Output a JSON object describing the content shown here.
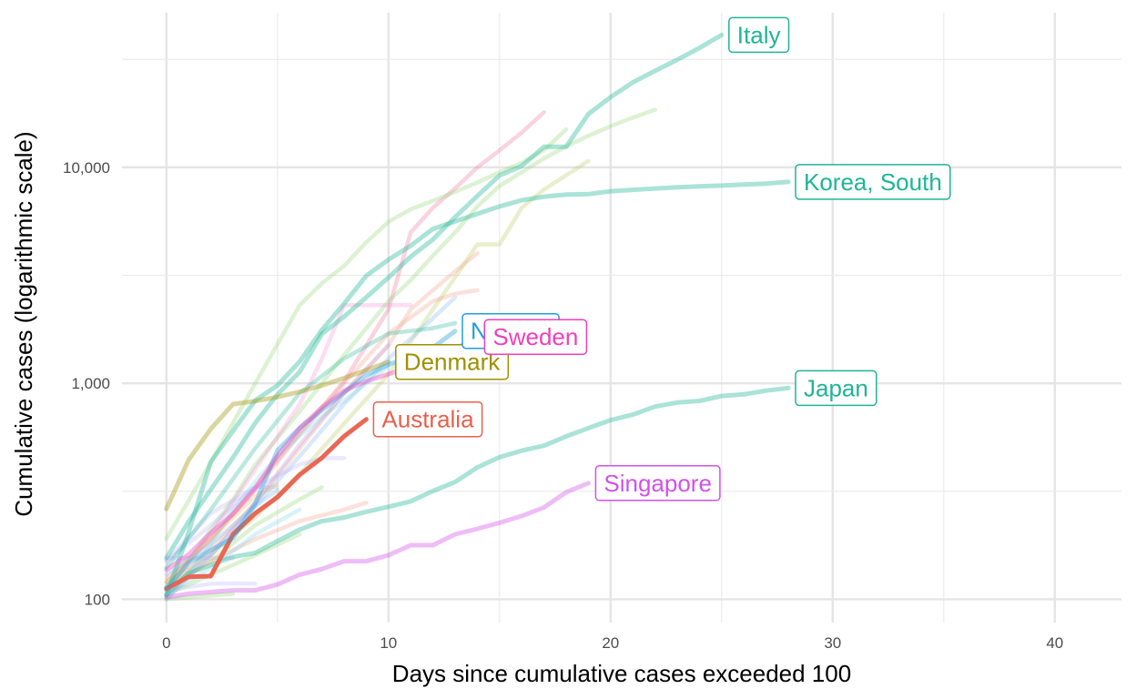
{
  "chart_data": {
    "type": "line",
    "title": "",
    "xlabel": "Days since cumulative cases exceeded 100",
    "ylabel": "Cumulative cases (logarithmic scale)",
    "x_scale": "linear",
    "y_scale": "log",
    "xlim": [
      -2,
      43
    ],
    "ylim": [
      78,
      52000
    ],
    "x_ticks": [
      0,
      10,
      20,
      30,
      40
    ],
    "x_tick_labels": [
      "0",
      "10",
      "20",
      "30",
      "40"
    ],
    "y_ticks": [
      100,
      1000,
      10000
    ],
    "y_tick_labels": [
      "100",
      "1,000",
      "10,000"
    ],
    "grid": true,
    "legend": "none",
    "labeled_series": [
      {
        "name": "Italy",
        "color": "#1fb596",
        "label": "Italy",
        "x": [
          0,
          1,
          2,
          3,
          4,
          5,
          6,
          7,
          8,
          9,
          10,
          11,
          12,
          13,
          14,
          15,
          16,
          17,
          18,
          19,
          20,
          21,
          22,
          23,
          24,
          25
        ],
        "y": [
          155,
          229,
          322,
          453,
          655,
          888,
          1128,
          1694,
          2036,
          2502,
          3089,
          3858,
          4636,
          5883,
          7375,
          9172,
          10149,
          12462,
          12462,
          17660,
          21157,
          24747,
          27980,
          31506,
          35713,
          41035
        ]
      },
      {
        "name": "Korea, South",
        "color": "#1fb596",
        "label": "Korea, South",
        "x": [
          0,
          1,
          2,
          3,
          4,
          5,
          6,
          7,
          8,
          9,
          10,
          11,
          12,
          13,
          14,
          15,
          16,
          17,
          18,
          19,
          20,
          21,
          22,
          23,
          24,
          25,
          26,
          27,
          28
        ],
        "y": [
          104,
          204,
          433,
          602,
          833,
          977,
          1261,
          1766,
          2337,
          3150,
          3736,
          4335,
          5186,
          5621,
          6088,
          6593,
          7041,
          7314,
          7478,
          7513,
          7755,
          7869,
          7979,
          8086,
          8162,
          8236,
          8320,
          8413,
          8565
        ]
      },
      {
        "name": "Japan",
        "color": "#1fb596",
        "label": "Japan",
        "x": [
          0,
          1,
          2,
          3,
          4,
          5,
          6,
          7,
          8,
          9,
          10,
          11,
          12,
          13,
          14,
          15,
          16,
          17,
          18,
          19,
          20,
          21,
          22,
          23,
          24,
          25,
          26,
          27,
          28
        ],
        "y": [
          105,
          132,
          144,
          157,
          164,
          186,
          210,
          230,
          239,
          254,
          268,
          284,
          317,
          349,
          408,
          455,
          488,
          514,
          568,
          620,
          675,
          716,
          780,
          814,
          829,
          873,
          889,
          925,
          950
        ]
      },
      {
        "name": "Singapore",
        "color": "#d152e8",
        "label": "Singapore",
        "x": [
          0,
          1,
          2,
          3,
          4,
          5,
          6,
          7,
          8,
          9,
          10,
          11,
          12,
          13,
          14,
          15,
          16,
          17,
          18,
          19
        ],
        "y": [
          102,
          106,
          108,
          110,
          110,
          117,
          130,
          138,
          150,
          150,
          160,
          178,
          178,
          200,
          212,
          226,
          243,
          266,
          313,
          345
        ]
      },
      {
        "name": "Australia",
        "color": "#e8604c",
        "label": "Australia",
        "x": [
          0,
          1,
          2,
          3,
          4,
          5,
          6,
          7,
          8,
          9
        ],
        "y": [
          112,
          127,
          128,
          200,
          250,
          297,
          377,
          452,
          568,
          681
        ]
      },
      {
        "name": "Denmark",
        "color": "#9f9000",
        "label": "Denmark",
        "x": [
          0,
          1,
          2,
          3,
          4,
          5,
          6,
          7,
          8,
          9,
          10
        ],
        "y": [
          262,
          442,
          615,
          801,
          827,
          864,
          914,
          977,
          1057,
          1151,
          1255
        ]
      },
      {
        "name": "Norway",
        "color": "#1f9fdb",
        "label": "Norway",
        "x": [
          0,
          1,
          2,
          3,
          4,
          5,
          6,
          7,
          8,
          9,
          10,
          11,
          12,
          13
        ],
        "y": [
          113,
          147,
          169,
          192,
          277,
          489,
          621,
          750,
          907,
          1090,
          1221,
          1333,
          1463,
          1746
        ]
      },
      {
        "name": "Sweden",
        "color": "#ef3fbf",
        "label": "Sweden",
        "x": [
          0,
          1,
          2,
          3,
          4,
          5,
          6,
          7,
          8,
          9,
          10,
          11,
          12,
          13,
          14
        ],
        "y": [
          137,
          161,
          203,
          248,
          326,
          461,
          620,
          771,
          924,
          1022,
          1103,
          1190,
          1279,
          1439,
          1639
        ]
      }
    ],
    "background_series": [
      {
        "color": "#f06e96",
        "x": [
          0,
          2,
          4,
          6,
          8,
          10,
          11,
          12,
          13,
          14,
          15,
          16,
          17
        ],
        "y": [
          120,
          190,
          330,
          590,
          1020,
          2200,
          5000,
          6500,
          8000,
          10000,
          12000,
          14500,
          18000
        ]
      },
      {
        "color": "#8cd46e",
        "x": [
          0,
          2,
          4,
          6,
          7,
          8,
          9,
          10,
          11,
          12,
          13,
          14,
          15,
          16,
          17,
          18
        ],
        "y": [
          191,
          430,
          1000,
          2300,
          2900,
          3500,
          4500,
          5600,
          6400,
          7000,
          7700,
          8500,
          9500,
          10500,
          12000,
          15000
        ]
      },
      {
        "color": "#8cd46e",
        "x": [
          0,
          1,
          2,
          3,
          4,
          5,
          6,
          7,
          8,
          9,
          10,
          11,
          12,
          13,
          14,
          15,
          16,
          17,
          18,
          19,
          20,
          21,
          22
        ],
        "y": [
          110,
          150,
          210,
          290,
          420,
          560,
          740,
          1000,
          1350,
          1800,
          2400,
          3000,
          3900,
          5000,
          6600,
          8200,
          9500,
          11000,
          12500,
          14000,
          15500,
          17000,
          18500
        ]
      },
      {
        "color": "#b5c95a",
        "x": [
          0,
          2,
          4,
          6,
          8,
          10,
          12,
          13,
          14,
          15,
          16,
          17,
          18,
          19
        ],
        "y": [
          120,
          160,
          240,
          380,
          650,
          1100,
          2200,
          3100,
          4400,
          4400,
          6500,
          7900,
          9200,
          10700
        ]
      },
      {
        "color": "#f49a86",
        "x": [
          0,
          2,
          4,
          6,
          8,
          10,
          11,
          12,
          13,
          14
        ],
        "y": [
          110,
          170,
          280,
          500,
          900,
          1500,
          2200,
          2700,
          3300,
          4000
        ]
      },
      {
        "color": "#f49a86",
        "x": [
          0,
          2,
          4,
          6,
          8,
          10,
          12,
          13,
          14
        ],
        "y": [
          125,
          190,
          320,
          580,
          1000,
          1700,
          2400,
          2600,
          2700
        ]
      },
      {
        "color": "#7db6f0",
        "x": [
          0,
          2,
          4,
          6,
          8,
          10,
          12,
          13
        ],
        "y": [
          110,
          160,
          270,
          460,
          800,
          1300,
          2000,
          2500
        ]
      },
      {
        "color": "#f68fd7",
        "x": [
          0,
          2,
          4,
          6,
          7,
          8,
          9,
          10,
          11
        ],
        "y": [
          110,
          200,
          400,
          800,
          1300,
          2300,
          2300,
          2300,
          2300
        ]
      },
      {
        "color": "#b8b4ff",
        "x": [
          0,
          2,
          4,
          6,
          7,
          8
        ],
        "y": [
          150,
          220,
          330,
          420,
          450,
          450
        ]
      },
      {
        "color": "#b8b4ff",
        "x": [
          0,
          2,
          4,
          5
        ],
        "y": [
          150,
          250,
          330,
          330
        ]
      },
      {
        "color": "#b8b4ff",
        "x": [
          0,
          1,
          2,
          3
        ],
        "y": [
          155,
          155,
          155,
          155
        ]
      },
      {
        "color": "#b8b4ff",
        "x": [
          0,
          2,
          4
        ],
        "y": [
          110,
          118,
          118
        ]
      },
      {
        "color": "#8cd46e",
        "x": [
          0,
          2,
          4,
          6,
          7
        ],
        "y": [
          115,
          150,
          220,
          290,
          330
        ]
      },
      {
        "color": "#8cd46e",
        "x": [
          0,
          2,
          4,
          6
        ],
        "y": [
          105,
          130,
          160,
          200
        ]
      },
      {
        "color": "#f49a86",
        "x": [
          0,
          2,
          4,
          6,
          8,
          9
        ],
        "y": [
          110,
          150,
          190,
          230,
          260,
          280
        ]
      },
      {
        "color": "#7dd3e8",
        "x": [
          0,
          2,
          4,
          6
        ],
        "y": [
          105,
          140,
          200,
          260
        ]
      },
      {
        "color": "#7dd3e8",
        "x": [
          0,
          1,
          2,
          3,
          4,
          5,
          6,
          7,
          8,
          9,
          10
        ],
        "y": [
          100,
          130,
          180,
          260,
          350,
          460,
          570,
          700,
          830,
          1000,
          1200
        ]
      },
      {
        "color": "#e6c06e",
        "x": [
          0,
          2,
          4,
          5
        ],
        "y": [
          120,
          190,
          300,
          340
        ]
      },
      {
        "color": "#1fb596",
        "x": [
          0,
          2,
          4,
          6,
          8,
          10,
          12,
          13
        ],
        "y": [
          140,
          260,
          500,
          900,
          1300,
          1700,
          1800,
          1900
        ]
      },
      {
        "color": "#b5a0e8",
        "x": [
          0,
          2,
          4,
          6,
          8,
          10
        ],
        "y": [
          100,
          160,
          280,
          520,
          900,
          1500
        ]
      },
      {
        "color": "#7db6f0",
        "x": [
          0,
          2,
          4,
          5
        ],
        "y": [
          130,
          180,
          270,
          320
        ]
      },
      {
        "color": "#8cd46e",
        "x": [
          0,
          1,
          2,
          3
        ],
        "y": [
          100,
          102,
          104,
          106
        ]
      }
    ]
  }
}
